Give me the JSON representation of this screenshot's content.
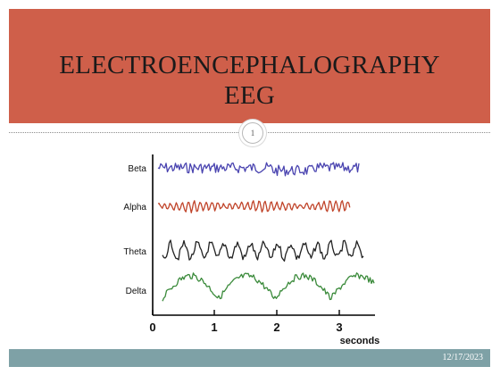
{
  "slide": {
    "title_line1": "ELECTROENCEPHALOGRAPHY",
    "title_line2": "EEG",
    "number": "1",
    "date": "12/17/2023"
  },
  "colors": {
    "title_band": "#cf5f4a",
    "footer_band": "#7ea1a6",
    "beta": "#4a44b0",
    "alpha": "#c0442a",
    "theta": "#222222",
    "delta": "#3a8a3a"
  },
  "eeg": {
    "waves": [
      {
        "label": "Beta",
        "color": "#4a44b0"
      },
      {
        "label": "Alpha",
        "color": "#c0442a"
      },
      {
        "label": "Theta",
        "color": "#222222"
      },
      {
        "label": "Delta",
        "color": "#3a8a3a"
      }
    ],
    "ticks": [
      "0",
      "1",
      "2",
      "3"
    ],
    "x_label": "seconds"
  }
}
